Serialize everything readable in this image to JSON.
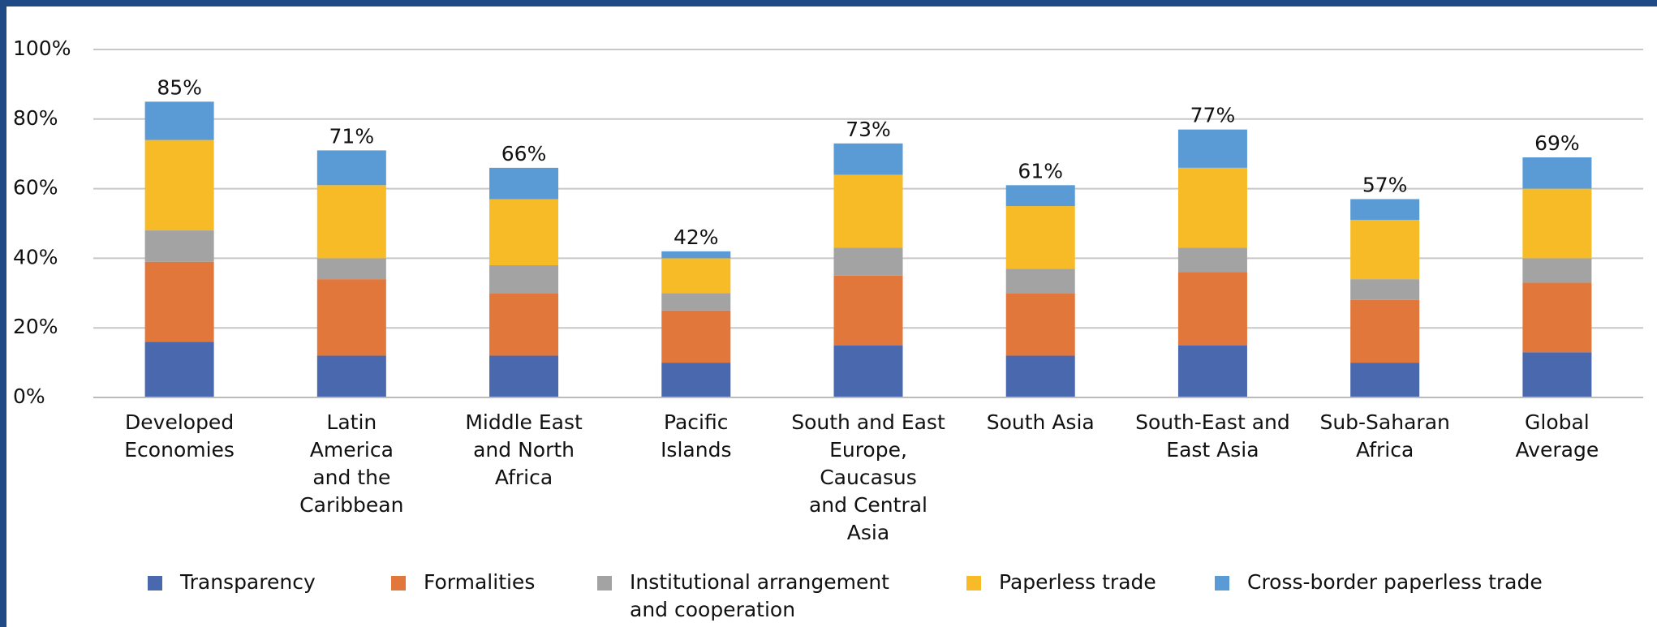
{
  "chart_data": {
    "type": "stacked_bar",
    "categories": [
      "Developed\nEconomies",
      "Latin\nAmerica\nand the\nCaribbean",
      "Middle East\nand North\nAfrica",
      "Pacific\nIslands",
      "South and East\nEurope,\nCaucasus\nand Central\nAsia",
      "South Asia",
      "South-East and\nEast Asia",
      "Sub-Saharan\nAfrica",
      "Global\nAverage"
    ],
    "series": [
      {
        "name": "Transparency",
        "color": "#4a68ad",
        "values": [
          16,
          12,
          12,
          10,
          15,
          12,
          15,
          10,
          13
        ]
      },
      {
        "name": "Formalities",
        "color": "#e2773b",
        "values": [
          23,
          22,
          18,
          15,
          20,
          18,
          21,
          18,
          20
        ]
      },
      {
        "name": "Institutional arrangement\nand cooperation",
        "color": "#a3a3a3",
        "values": [
          9,
          6,
          8,
          5,
          8,
          7,
          7,
          6,
          7
        ]
      },
      {
        "name": "Paperless trade",
        "color": "#f6bb26",
        "values": [
          26,
          21,
          19,
          10,
          21,
          18,
          23,
          17,
          20
        ]
      },
      {
        "name": "Cross-border paperless trade",
        "color": "#5b9bd5",
        "values": [
          11,
          10,
          9,
          2,
          9,
          6,
          11,
          6,
          9
        ]
      }
    ],
    "totals": [
      85,
      71,
      66,
      42,
      73,
      61,
      77,
      57,
      69
    ],
    "total_labels": [
      "85%",
      "71%",
      "66%",
      "42%",
      "73%",
      "61%",
      "77%",
      "57%",
      "69%"
    ],
    "ylim": [
      0,
      100
    ],
    "yticks": [
      {
        "value": 0,
        "label": "0%"
      },
      {
        "value": 20,
        "label": "20%"
      },
      {
        "value": 40,
        "label": "40%"
      },
      {
        "value": 60,
        "label": "60%"
      },
      {
        "value": 80,
        "label": "80%"
      },
      {
        "value": 100,
        "label": "100%"
      }
    ],
    "grid": true,
    "legend": "bottom"
  }
}
